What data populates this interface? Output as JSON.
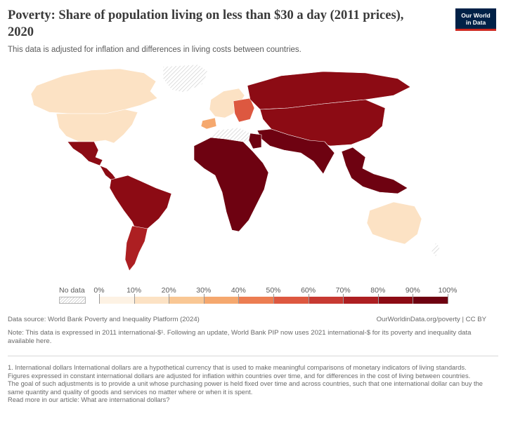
{
  "header": {
    "title": "Poverty: Share of population living on less than $30 a day (2011 prices), 2020",
    "subtitle": "This data is adjusted for inflation and differences in living costs between countries.",
    "logo_line1": "Our World",
    "logo_line2": "in Data"
  },
  "legend": {
    "no_data_label": "No data",
    "bins": [
      "0%",
      "10%",
      "20%",
      "30%",
      "40%",
      "50%",
      "60%",
      "70%",
      "80%",
      "90%",
      "100%"
    ],
    "colors": [
      "#fdf2e4",
      "#fce2c4",
      "#f9c794",
      "#f5a86e",
      "#ec7d52",
      "#dd5840",
      "#c73a32",
      "#ad1f22",
      "#8c0b14",
      "#6e0211"
    ],
    "no_data_color": "hatched-grey"
  },
  "regions": [
    {
      "region": "Canada",
      "bin": 1
    },
    {
      "region": "United States",
      "bin": 1
    },
    {
      "region": "Mexico",
      "bin": 8
    },
    {
      "region": "Central America",
      "bin": 8
    },
    {
      "region": "South America (north/Brazil)",
      "bin": 8
    },
    {
      "region": "Argentina / Chile",
      "bin": 7
    },
    {
      "region": "Greenland",
      "bin": null
    },
    {
      "region": "Western Europe",
      "bin": 1
    },
    {
      "region": "Spain / Portugal",
      "bin": 3
    },
    {
      "region": "Eastern Europe",
      "bin": 5
    },
    {
      "region": "Russia",
      "bin": 8
    },
    {
      "region": "China / Central Asia",
      "bin": 8
    },
    {
      "region": "India / South Asia",
      "bin": 9
    },
    {
      "region": "Southeast Asia / Indonesia",
      "bin": 9
    },
    {
      "region": "Sub-Saharan Africa",
      "bin": 9
    },
    {
      "region": "Egypt",
      "bin": 9
    },
    {
      "region": "Australia",
      "bin": 1
    }
  ],
  "footer": {
    "source": "Data source: World Bank Poverty and Inequality Platform (2024)",
    "credit": "OurWorldinData.org/poverty | CC BY",
    "note": "Note: This data is expressed in 2011 international-$¹. Following an update, World Bank PIP now uses 2021 international-$ for its poverty and inequality data available here.",
    "footnotes": [
      "1. International dollars International dollars are a hypothetical currency that is used to make meaningful comparisons of monetary indicators of living standards.",
      "Figures expressed in constant international dollars are adjusted for inflation within countries over time, and for differences in the cost of living between countries.",
      "The goal of such adjustments is to provide a unit whose purchasing power is held fixed over time and across countries, such that one international dollar can buy the same quantity and quality of goods and services no matter where or when it is spent.",
      "Read more in our article: What are international dollars?"
    ]
  }
}
